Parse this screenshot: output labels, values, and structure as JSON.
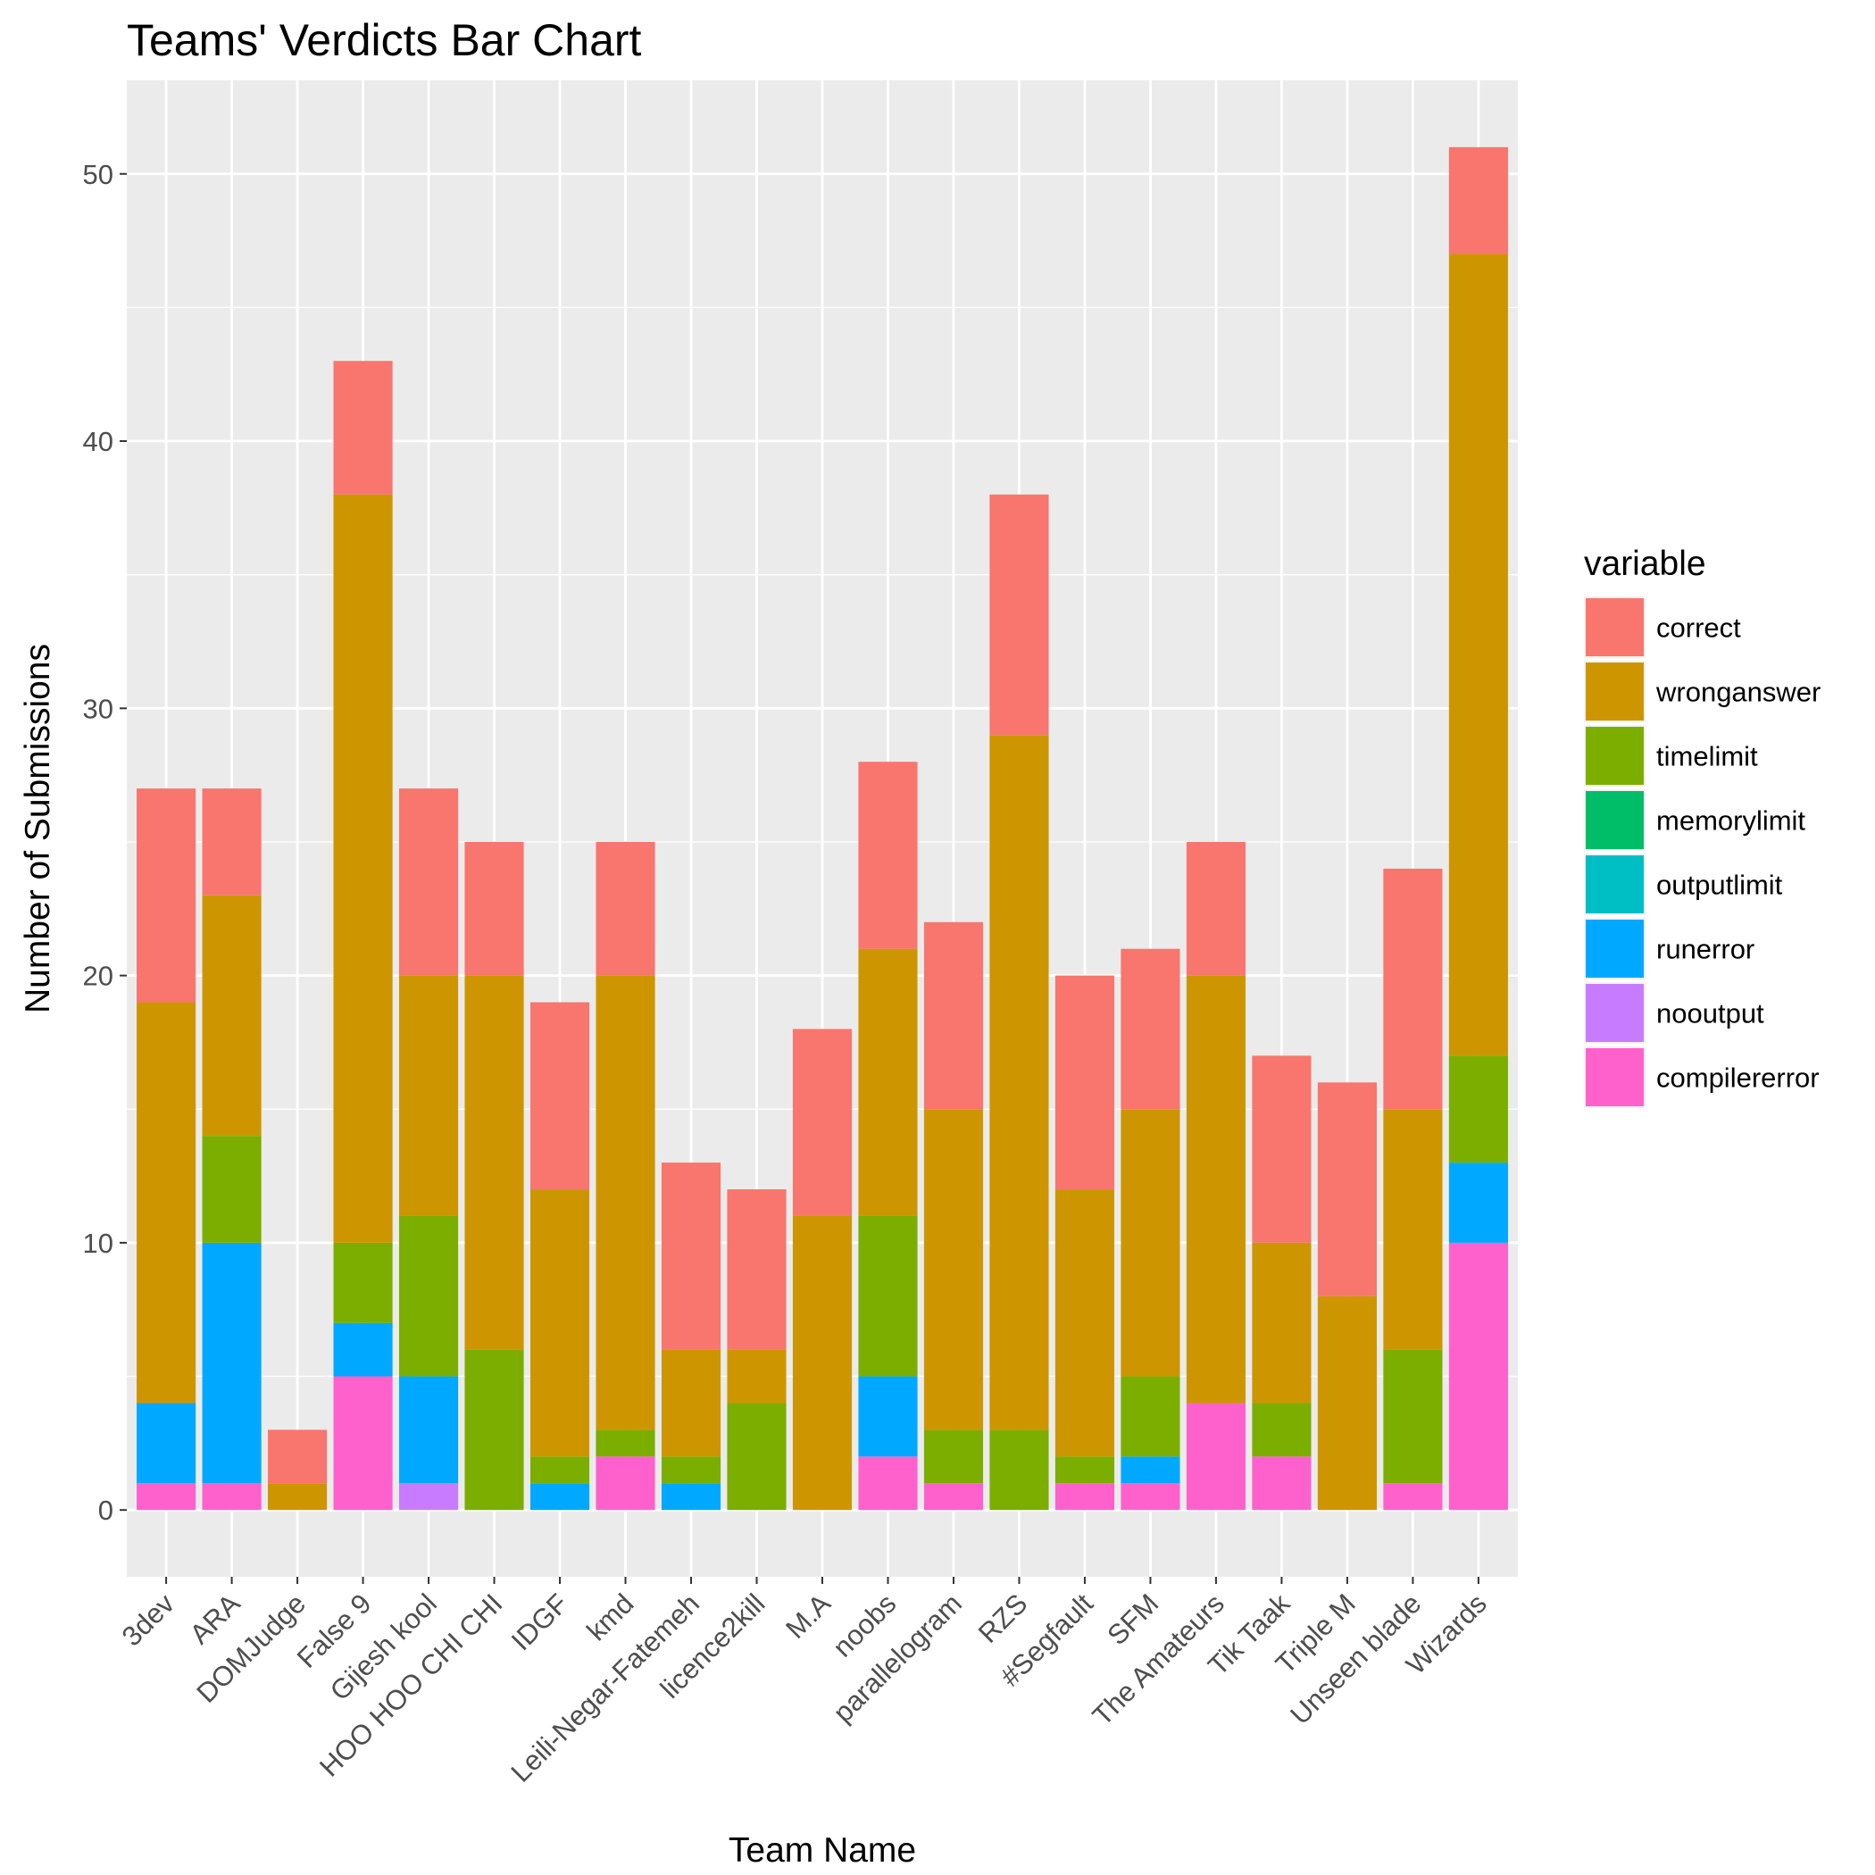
{
  "chart_data": {
    "type": "bar",
    "stacked": true,
    "title": "Teams' Verdicts Bar Chart",
    "xlabel": "Team Name",
    "ylabel": "Number of Submissions",
    "ylim": [
      -2.5,
      53.5
    ],
    "yticks": [
      0,
      10,
      20,
      30,
      40,
      50
    ],
    "grid": true,
    "legend": {
      "title": "variable",
      "placement": "right"
    },
    "categories": [
      "3dev",
      "ARA",
      "DOMJudge",
      "False 9",
      "Gijesh kool",
      "HOO HOO CHI CHI",
      "IDGF",
      "kmd",
      "Leili-Negar-Fatemeh",
      "licence2kill",
      "M.A",
      "noobs",
      "parallelogram",
      "RZS",
      "#Segfault",
      "SFM",
      "The Amateurs",
      "Tik Taak",
      "Triple M",
      "Unseen blade",
      "Wizards"
    ],
    "series": [
      {
        "name": "correct",
        "color": "#F8766D",
        "values": [
          8,
          4,
          2,
          5,
          7,
          5,
          7,
          5,
          7,
          6,
          7,
          7,
          7,
          9,
          8,
          6,
          5,
          7,
          8,
          9,
          4
        ]
      },
      {
        "name": "wronganswer",
        "color": "#CD9600",
        "values": [
          15,
          9,
          1,
          28,
          9,
          14,
          10,
          17,
          4,
          2,
          11,
          10,
          12,
          26,
          10,
          10,
          16,
          6,
          8,
          9,
          30
        ]
      },
      {
        "name": "timelimit",
        "color": "#7CAE00",
        "values": [
          0,
          4,
          0,
          3,
          6,
          6,
          1,
          1,
          1,
          4,
          0,
          6,
          2,
          3,
          1,
          3,
          0,
          2,
          0,
          5,
          4
        ]
      },
      {
        "name": "memorylimit",
        "color": "#00BE67",
        "values": [
          0,
          0,
          0,
          0,
          0,
          0,
          0,
          0,
          0,
          0,
          0,
          0,
          0,
          0,
          0,
          0,
          0,
          0,
          0,
          0,
          0
        ]
      },
      {
        "name": "outputlimit",
        "color": "#00BFC4",
        "values": [
          0,
          0,
          0,
          0,
          0,
          0,
          0,
          0,
          0,
          0,
          0,
          0,
          0,
          0,
          0,
          0,
          0,
          0,
          0,
          0,
          0
        ]
      },
      {
        "name": "runerror",
        "color": "#00A9FF",
        "values": [
          3,
          9,
          0,
          2,
          4,
          0,
          1,
          0,
          1,
          0,
          0,
          3,
          0,
          0,
          0,
          1,
          0,
          0,
          0,
          0,
          3
        ]
      },
      {
        "name": "nooutput",
        "color": "#C77CFF",
        "values": [
          0,
          0,
          0,
          0,
          1,
          0,
          0,
          0,
          0,
          0,
          0,
          0,
          0,
          0,
          0,
          0,
          0,
          0,
          0,
          0,
          0
        ]
      },
      {
        "name": "compilererror",
        "color": "#FF61CC",
        "values": [
          1,
          1,
          0,
          5,
          0,
          0,
          0,
          2,
          0,
          0,
          0,
          2,
          1,
          0,
          1,
          1,
          4,
          2,
          0,
          1,
          10
        ]
      }
    ]
  }
}
